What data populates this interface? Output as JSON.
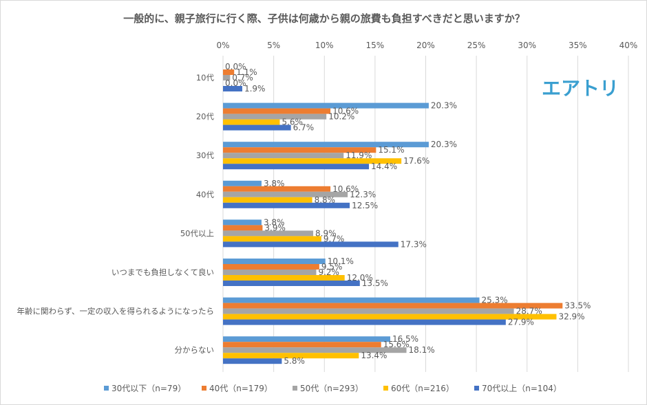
{
  "chart_data": {
    "type": "bar",
    "orientation": "horizontal",
    "title": "一般的に、親子旅行に行く際、子供は何歳から親の旅費も負担すべきだと思いますか？",
    "categories": [
      "10代",
      "20代",
      "30代",
      "40代",
      "50代以上",
      "いつまでも負担しなくて良い",
      "年齢に関わらず、一定の収入を得られるようになったら",
      "分からない"
    ],
    "xlim": [
      0,
      40
    ],
    "xticks": [
      "0%",
      "5%",
      "10%",
      "15%",
      "20%",
      "25%",
      "30%",
      "35%",
      "40%"
    ],
    "tick_values": [
      0,
      5,
      10,
      15,
      20,
      25,
      30,
      35,
      40
    ],
    "grid": true,
    "legend_position": "bottom",
    "series": [
      {
        "name": "30代以下（n=79）",
        "color": "#5B9BD5",
        "values": [
          0.0,
          20.3,
          20.3,
          3.8,
          3.8,
          10.1,
          25.3,
          16.5
        ]
      },
      {
        "name": "40代（n=179）",
        "color": "#ED7D31",
        "values": [
          1.1,
          10.6,
          15.1,
          10.6,
          3.9,
          9.5,
          33.5,
          15.6
        ]
      },
      {
        "name": "50代（n=293）",
        "color": "#A5A5A5",
        "values": [
          0.7,
          10.2,
          11.9,
          12.3,
          8.9,
          9.2,
          28.7,
          18.1
        ]
      },
      {
        "name": "60代（n=216）",
        "color": "#FFC000",
        "values": [
          0.0,
          5.6,
          17.6,
          8.8,
          9.7,
          12.0,
          32.9,
          13.4
        ]
      },
      {
        "name": "70代以上（n=104）",
        "color": "#4472C4",
        "values": [
          1.9,
          6.7,
          14.4,
          12.5,
          17.3,
          13.5,
          27.9,
          5.8
        ]
      }
    ]
  },
  "logo": {
    "text": "エアトリ",
    "color": "#3A9FD0"
  }
}
